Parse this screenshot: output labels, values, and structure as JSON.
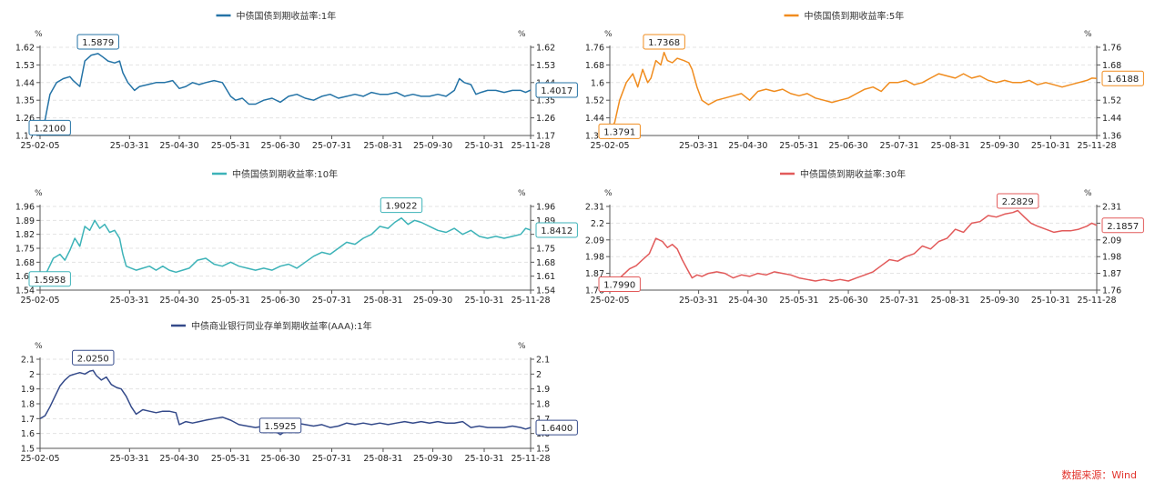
{
  "source_label": "数据来源：Wind",
  "chart_data": [
    {
      "type": "line",
      "title": "中债国债到期收益率:1年",
      "color": "#2473a6",
      "unit_left": "%",
      "unit_right": "%",
      "ylim": [
        1.17,
        1.62
      ],
      "yticks": [
        "1.62",
        "1.53",
        "1.44",
        "1.35",
        "1.26",
        "1.17"
      ],
      "xlim": [
        0,
        296
      ],
      "x_ticks": [
        {
          "day": 0,
          "label": "25-02-05"
        },
        {
          "day": 54,
          "label": "25-03-31"
        },
        {
          "day": 84,
          "label": "25-04-30"
        },
        {
          "day": 115,
          "label": "25-05-31"
        },
        {
          "day": 145,
          "label": "25-06-30"
        },
        {
          "day": 176,
          "label": "25-07-31"
        },
        {
          "day": 207,
          "label": "25-08-31"
        },
        {
          "day": 237,
          "label": "25-09-30"
        },
        {
          "day": 268,
          "label": "25-10-31"
        },
        {
          "day": 296,
          "label": "25-11-28"
        }
      ],
      "start_label": "1.2100",
      "peak": {
        "day": 35,
        "value": 1.5879,
        "label": "1.5879"
      },
      "end_label": "1.4017",
      "series": [
        {
          "name": "中债国债到期收益率:1年",
          "x": [
            0,
            3,
            6,
            10,
            14,
            18,
            20,
            24,
            27,
            31,
            35,
            38,
            41,
            45,
            48,
            50,
            53,
            57,
            60,
            65,
            70,
            75,
            80,
            84,
            88,
            92,
            96,
            100,
            105,
            110,
            115,
            118,
            122,
            126,
            130,
            135,
            140,
            145,
            150,
            155,
            160,
            165,
            170,
            175,
            180,
            185,
            190,
            195,
            200,
            205,
            210,
            215,
            220,
            225,
            230,
            235,
            240,
            245,
            250,
            253,
            256,
            260,
            263,
            266,
            270,
            275,
            280,
            285,
            290,
            293,
            296
          ],
          "values": [
            1.21,
            1.25,
            1.38,
            1.44,
            1.46,
            1.47,
            1.45,
            1.42,
            1.55,
            1.58,
            1.5879,
            1.57,
            1.55,
            1.54,
            1.55,
            1.49,
            1.44,
            1.4,
            1.42,
            1.43,
            1.44,
            1.44,
            1.45,
            1.41,
            1.42,
            1.44,
            1.43,
            1.44,
            1.45,
            1.44,
            1.37,
            1.35,
            1.36,
            1.33,
            1.33,
            1.35,
            1.36,
            1.34,
            1.37,
            1.38,
            1.36,
            1.35,
            1.37,
            1.38,
            1.36,
            1.37,
            1.38,
            1.37,
            1.39,
            1.38,
            1.38,
            1.39,
            1.37,
            1.38,
            1.37,
            1.37,
            1.38,
            1.37,
            1.4,
            1.46,
            1.44,
            1.43,
            1.38,
            1.39,
            1.4,
            1.4,
            1.39,
            1.4,
            1.4,
            1.39,
            1.4017
          ]
        }
      ]
    },
    {
      "type": "line",
      "title": "中债国债到期收益率:5年",
      "color": "#f08c1e",
      "unit_left": "%",
      "unit_right": "%",
      "ylim": [
        1.36,
        1.76
      ],
      "yticks": [
        "1.76",
        "1.68",
        "1.6",
        "1.52",
        "1.44",
        "1.36"
      ],
      "xlim": [
        0,
        296
      ],
      "x_ticks": [
        {
          "day": 0,
          "label": "25-02-05"
        },
        {
          "day": 54,
          "label": "25-03-31"
        },
        {
          "day": 84,
          "label": "25-04-30"
        },
        {
          "day": 115,
          "label": "25-05-31"
        },
        {
          "day": 145,
          "label": "25-06-30"
        },
        {
          "day": 176,
          "label": "25-07-31"
        },
        {
          "day": 207,
          "label": "25-08-31"
        },
        {
          "day": 237,
          "label": "25-09-30"
        },
        {
          "day": 268,
          "label": "25-10-31"
        },
        {
          "day": 296,
          "label": "25-11-28"
        }
      ],
      "start_label": "1.3791",
      "peak": {
        "day": 33,
        "value": 1.7368,
        "label": "1.7368"
      },
      "end_label": "1.6188",
      "series": [
        {
          "name": "中债国债到期收益率:5年",
          "x": [
            0,
            3,
            6,
            10,
            14,
            17,
            20,
            23,
            25,
            28,
            31,
            33,
            35,
            38,
            41,
            45,
            48,
            50,
            53,
            56,
            60,
            65,
            70,
            75,
            80,
            85,
            90,
            95,
            100,
            105,
            110,
            115,
            120,
            125,
            130,
            135,
            140,
            145,
            150,
            155,
            160,
            165,
            170,
            175,
            180,
            185,
            190,
            195,
            200,
            205,
            210,
            215,
            220,
            225,
            230,
            235,
            240,
            245,
            250,
            255,
            260,
            265,
            270,
            275,
            280,
            285,
            290,
            293,
            296
          ],
          "values": [
            1.3791,
            1.42,
            1.52,
            1.6,
            1.64,
            1.58,
            1.66,
            1.6,
            1.62,
            1.7,
            1.68,
            1.7368,
            1.7,
            1.69,
            1.71,
            1.7,
            1.69,
            1.66,
            1.58,
            1.52,
            1.5,
            1.52,
            1.53,
            1.54,
            1.55,
            1.52,
            1.56,
            1.57,
            1.56,
            1.57,
            1.55,
            1.54,
            1.55,
            1.53,
            1.52,
            1.51,
            1.52,
            1.53,
            1.55,
            1.57,
            1.58,
            1.56,
            1.6,
            1.6,
            1.61,
            1.59,
            1.6,
            1.62,
            1.64,
            1.63,
            1.62,
            1.64,
            1.62,
            1.63,
            1.61,
            1.6,
            1.61,
            1.6,
            1.6,
            1.61,
            1.59,
            1.6,
            1.59,
            1.58,
            1.59,
            1.6,
            1.61,
            1.62,
            1.6188
          ]
        }
      ]
    },
    {
      "type": "line",
      "title": "中债国债到期收益率:10年",
      "color": "#3db3b8",
      "unit_left": "%",
      "unit_right": "%",
      "ylim": [
        1.54,
        1.96
      ],
      "yticks": [
        "1.96",
        "1.89",
        "1.82",
        "1.75",
        "1.68",
        "1.61",
        "1.54"
      ],
      "xlim": [
        0,
        296
      ],
      "x_ticks": [
        {
          "day": 0,
          "label": "25-02-05"
        },
        {
          "day": 54,
          "label": "25-03-31"
        },
        {
          "day": 84,
          "label": "25-04-30"
        },
        {
          "day": 115,
          "label": "25-05-31"
        },
        {
          "day": 145,
          "label": "25-06-30"
        },
        {
          "day": 176,
          "label": "25-07-31"
        },
        {
          "day": 207,
          "label": "25-08-31"
        },
        {
          "day": 237,
          "label": "25-09-30"
        },
        {
          "day": 268,
          "label": "25-10-31"
        },
        {
          "day": 296,
          "label": "25-11-28"
        }
      ],
      "start_label": "1.5958",
      "peak": {
        "day": 218,
        "value": 1.9022,
        "label": "1.9022"
      },
      "end_label": "1.8412",
      "series": [
        {
          "name": "中债国债到期收益率:10年",
          "x": [
            0,
            4,
            8,
            12,
            15,
            18,
            21,
            24,
            27,
            30,
            33,
            36,
            39,
            42,
            45,
            48,
            50,
            52,
            55,
            58,
            62,
            66,
            70,
            74,
            78,
            82,
            86,
            90,
            95,
            100,
            105,
            110,
            115,
            120,
            125,
            130,
            135,
            140,
            145,
            150,
            155,
            160,
            165,
            170,
            175,
            180,
            185,
            190,
            195,
            200,
            205,
            210,
            214,
            218,
            222,
            226,
            230,
            235,
            240,
            245,
            250,
            255,
            260,
            265,
            270,
            275,
            280,
            285,
            290,
            293,
            296
          ],
          "values": [
            1.5958,
            1.63,
            1.7,
            1.72,
            1.69,
            1.74,
            1.8,
            1.76,
            1.86,
            1.84,
            1.89,
            1.85,
            1.87,
            1.83,
            1.84,
            1.8,
            1.72,
            1.66,
            1.65,
            1.64,
            1.65,
            1.66,
            1.64,
            1.66,
            1.64,
            1.63,
            1.64,
            1.65,
            1.69,
            1.7,
            1.67,
            1.66,
            1.68,
            1.66,
            1.65,
            1.64,
            1.65,
            1.64,
            1.66,
            1.67,
            1.65,
            1.68,
            1.71,
            1.73,
            1.72,
            1.75,
            1.78,
            1.77,
            1.8,
            1.82,
            1.86,
            1.85,
            1.88,
            1.9022,
            1.87,
            1.89,
            1.88,
            1.86,
            1.84,
            1.83,
            1.85,
            1.82,
            1.84,
            1.81,
            1.8,
            1.81,
            1.8,
            1.81,
            1.82,
            1.85,
            1.8412
          ]
        }
      ]
    },
    {
      "type": "line",
      "title": "中债国债到期收益率:30年",
      "color": "#e25a5a",
      "unit_left": "%",
      "unit_right": "%",
      "ylim": [
        1.76,
        2.31
      ],
      "yticks": [
        "2.31",
        "2.2",
        "2.09",
        "1.98",
        "1.87",
        "1.76"
      ],
      "xlim": [
        0,
        296
      ],
      "x_ticks": [
        {
          "day": 0,
          "label": "25-02-05"
        },
        {
          "day": 54,
          "label": "25-03-31"
        },
        {
          "day": 84,
          "label": "25-04-30"
        },
        {
          "day": 115,
          "label": "25-05-31"
        },
        {
          "day": 145,
          "label": "25-06-30"
        },
        {
          "day": 176,
          "label": "25-07-31"
        },
        {
          "day": 207,
          "label": "25-08-31"
        },
        {
          "day": 237,
          "label": "25-09-30"
        },
        {
          "day": 268,
          "label": "25-10-31"
        },
        {
          "day": 296,
          "label": "25-11-28"
        }
      ],
      "start_label": "1.7990",
      "peak": {
        "day": 248,
        "value": 2.2829,
        "label": "2.2829"
      },
      "end_label": "2.1857",
      "series": [
        {
          "name": "中债国债到期收益率:30年",
          "x": [
            0,
            4,
            8,
            12,
            16,
            20,
            24,
            28,
            32,
            35,
            38,
            41,
            44,
            47,
            50,
            53,
            56,
            60,
            65,
            70,
            75,
            80,
            85,
            90,
            95,
            100,
            105,
            110,
            115,
            120,
            125,
            130,
            135,
            140,
            145,
            150,
            155,
            160,
            165,
            170,
            175,
            180,
            185,
            190,
            195,
            200,
            205,
            210,
            215,
            220,
            225,
            230,
            235,
            240,
            245,
            248,
            252,
            256,
            260,
            265,
            270,
            275,
            280,
            285,
            290,
            293,
            296
          ],
          "values": [
            1.799,
            1.82,
            1.86,
            1.9,
            1.92,
            1.96,
            2.0,
            2.1,
            2.08,
            2.04,
            2.06,
            2.03,
            1.96,
            1.9,
            1.84,
            1.86,
            1.85,
            1.87,
            1.88,
            1.87,
            1.84,
            1.86,
            1.85,
            1.87,
            1.86,
            1.88,
            1.87,
            1.86,
            1.84,
            1.83,
            1.82,
            1.83,
            1.82,
            1.83,
            1.82,
            1.84,
            1.86,
            1.88,
            1.92,
            1.96,
            1.95,
            1.98,
            2.0,
            2.05,
            2.03,
            2.08,
            2.1,
            2.16,
            2.14,
            2.2,
            2.21,
            2.25,
            2.24,
            2.26,
            2.27,
            2.2829,
            2.24,
            2.2,
            2.18,
            2.16,
            2.14,
            2.15,
            2.15,
            2.16,
            2.18,
            2.2,
            2.1857
          ]
        }
      ]
    },
    {
      "type": "line",
      "title": "中债商业银行同业存单到期收益率(AAA):1年",
      "color": "#344a8a",
      "unit_left": "%",
      "unit_right": "%",
      "ylim": [
        1.5,
        2.1
      ],
      "yticks": [
        "2.1",
        "2",
        "1.9",
        "1.8",
        "1.7",
        "1.6",
        "1.5"
      ],
      "xlim": [
        0,
        296
      ],
      "x_ticks": [
        {
          "day": 0,
          "label": "25-02-05"
        },
        {
          "day": 54,
          "label": "25-03-31"
        },
        {
          "day": 84,
          "label": "25-04-30"
        },
        {
          "day": 115,
          "label": "25-05-31"
        },
        {
          "day": 145,
          "label": "25-06-30"
        },
        {
          "day": 176,
          "label": "25-07-31"
        },
        {
          "day": 207,
          "label": "25-08-31"
        },
        {
          "day": 237,
          "label": "25-09-30"
        },
        {
          "day": 268,
          "label": "25-10-31"
        },
        {
          "day": 296,
          "label": "25-11-28"
        }
      ],
      "start_label": "",
      "peak": {
        "day": 32,
        "value": 2.025,
        "label": "2.0250"
      },
      "trough": {
        "day": 145,
        "value": 1.5925,
        "label": "1.5925"
      },
      "end_label": "1.6400",
      "series": [
        {
          "name": "中债商业银行同业存单到期收益率(AAA):1年",
          "x": [
            0,
            3,
            6,
            9,
            12,
            15,
            18,
            21,
            24,
            27,
            30,
            32,
            34,
            37,
            40,
            43,
            46,
            49,
            52,
            55,
            58,
            62,
            66,
            70,
            74,
            78,
            82,
            84,
            88,
            92,
            96,
            100,
            105,
            110,
            115,
            120,
            125,
            130,
            135,
            140,
            145,
            150,
            155,
            160,
            165,
            170,
            175,
            180,
            185,
            190,
            195,
            200,
            205,
            210,
            215,
            220,
            225,
            230,
            235,
            240,
            245,
            250,
            255,
            260,
            265,
            270,
            275,
            280,
            285,
            290,
            293,
            296
          ],
          "values": [
            1.7,
            1.72,
            1.78,
            1.85,
            1.92,
            1.96,
            1.99,
            2.0,
            2.01,
            2.0,
            2.02,
            2.025,
            1.99,
            1.96,
            1.98,
            1.93,
            1.91,
            1.9,
            1.85,
            1.78,
            1.73,
            1.76,
            1.75,
            1.74,
            1.75,
            1.75,
            1.74,
            1.66,
            1.68,
            1.67,
            1.68,
            1.69,
            1.7,
            1.71,
            1.69,
            1.66,
            1.65,
            1.64,
            1.65,
            1.63,
            1.5925,
            1.63,
            1.67,
            1.66,
            1.65,
            1.66,
            1.64,
            1.65,
            1.67,
            1.66,
            1.67,
            1.66,
            1.67,
            1.66,
            1.67,
            1.68,
            1.67,
            1.68,
            1.67,
            1.68,
            1.67,
            1.67,
            1.68,
            1.64,
            1.65,
            1.64,
            1.64,
            1.64,
            1.65,
            1.64,
            1.63,
            1.64
          ]
        }
      ]
    }
  ]
}
